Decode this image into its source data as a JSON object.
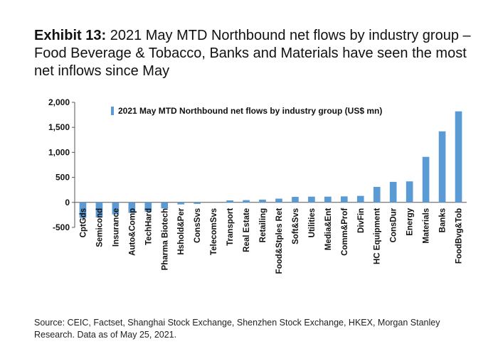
{
  "header": {
    "exhibit_label": "Exhibit 13:",
    "title": "2021 May MTD Northbound net flows by industry group – Food Beverage & Tobacco, Banks and Materials have seen the most net inflows since May"
  },
  "chart_data": {
    "type": "bar",
    "legend": "2021 May MTD Northbound net flows by industry group (US$ mn)",
    "legend_position": "top",
    "categories": [
      "CptGds",
      "Semicond",
      "Insurance",
      "Auto&Comp",
      "TechHard",
      "Pharma Biotech",
      "Hshold&Per",
      "ConsSvs",
      "TelecomSvs",
      "Transport",
      "Real Estate",
      "Retailing",
      "Food&Stples Ret",
      "Soft&Svs",
      "Utilities",
      "Media&Ent",
      "Comm&Prof",
      "DivFin",
      "HC Equipment",
      "ConsDur",
      "Energy",
      "Materials",
      "Banks",
      "FoodBvg&Tob"
    ],
    "values": [
      -310,
      -300,
      -240,
      -210,
      -190,
      -120,
      -40,
      -30,
      0,
      40,
      45,
      55,
      75,
      110,
      115,
      115,
      120,
      130,
      310,
      410,
      420,
      910,
      1420,
      1820
    ],
    "yticks": [
      "2,000",
      "1,500",
      "1,000",
      "500",
      "0",
      "-500"
    ],
    "ylim": [
      -500,
      2000
    ],
    "grid": false,
    "bar_color": "#5b9bd5"
  },
  "footer": {
    "source": "Source: CEIC, Factset, Shanghai Stock Exchange, Shenzhen Stock Exchange, HKEX, Morgan Stanley Research. Data as of May 25, 2021."
  }
}
